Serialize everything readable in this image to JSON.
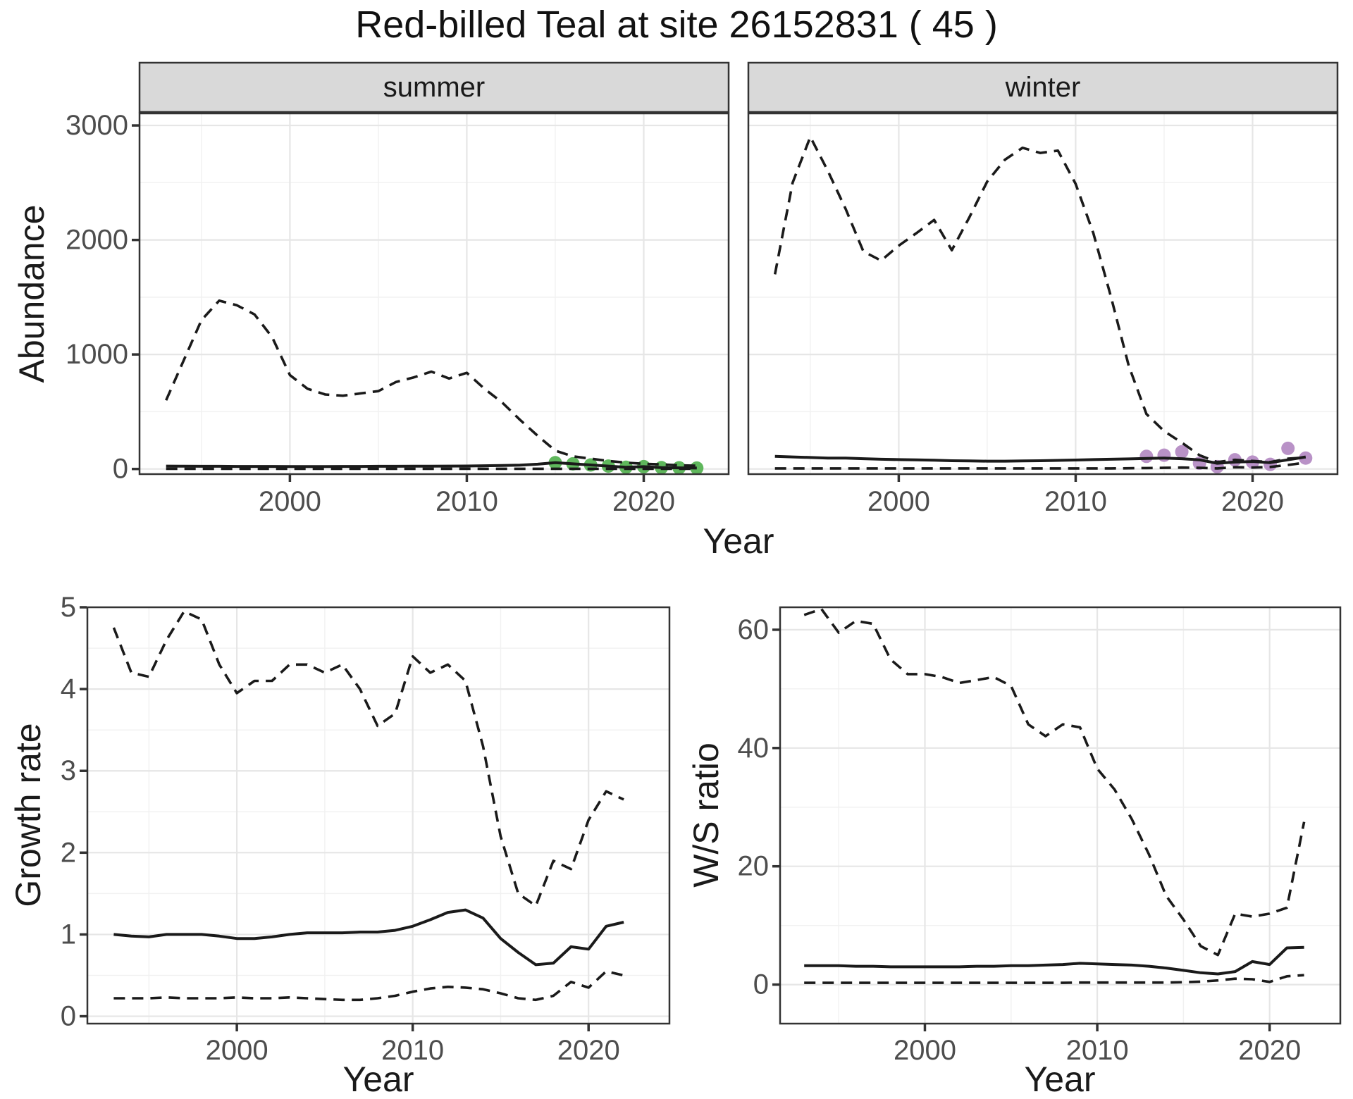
{
  "title": "Red-billed Teal at site 26152831 ( 45 )",
  "colors": {
    "line": "#1a1a1a",
    "dot_summer": "#5fb75c",
    "dot_winter": "#b992c7",
    "strip_bg": "#d9d9d9",
    "grid_major": "#e6e6e6",
    "grid_minor": "#f1f1f1",
    "axis_text": "#4d4d4d",
    "border": "#333333",
    "tick": "#333333"
  },
  "chart_data": [
    {
      "id": "abundance-summer",
      "type": "line",
      "facet": "summer",
      "ylabel": "Abundance",
      "xlabel": "Year",
      "xlim": [
        1991.5,
        2024.8
      ],
      "ylim": [
        -45,
        3105
      ],
      "xticks": [
        2000,
        2010,
        2020
      ],
      "xtick_labels": [
        "2000",
        "2010",
        "2020"
      ],
      "xminor": [
        1995,
        2005,
        2015
      ],
      "yticks": [
        0,
        1000,
        2000,
        3000
      ],
      "ytick_labels": [
        "0",
        "1000",
        "2000",
        "3000"
      ],
      "yminor": [
        500,
        1500,
        2500
      ],
      "x": [
        1993,
        1994,
        1995,
        1996,
        1997,
        1998,
        1999,
        2000,
        2001,
        2002,
        2003,
        2004,
        2005,
        2006,
        2007,
        2008,
        2009,
        2010,
        2011,
        2012,
        2013,
        2014,
        2015,
        2016,
        2017,
        2018,
        2019,
        2020,
        2021,
        2022,
        2023
      ],
      "series": [
        {
          "name": "upper_ci",
          "style": "dashed",
          "values": [
            600,
            950,
            1300,
            1470,
            1430,
            1350,
            1150,
            820,
            700,
            650,
            640,
            660,
            680,
            760,
            800,
            850,
            790,
            840,
            700,
            580,
            430,
            290,
            160,
            110,
            90,
            70,
            55,
            45,
            40,
            32,
            28
          ]
        },
        {
          "name": "lower_ci",
          "style": "dashed",
          "values": [
            2,
            2,
            2,
            2,
            2,
            2,
            2,
            2,
            2,
            2,
            2,
            2,
            2,
            2,
            2,
            2,
            2,
            2,
            2,
            2,
            2,
            2,
            2,
            2,
            2,
            2,
            2,
            2,
            2,
            2,
            2
          ]
        },
        {
          "name": "median",
          "style": "solid",
          "values": [
            25,
            24,
            23,
            23,
            22,
            22,
            22,
            21,
            21,
            21,
            22,
            22,
            23,
            23,
            24,
            24,
            25,
            26,
            28,
            30,
            33,
            42,
            55,
            45,
            35,
            25,
            15,
            20,
            12,
            10,
            8
          ]
        }
      ],
      "points": {
        "name": "observed-count",
        "color_key": "dot_summer",
        "x": [
          2015,
          2016,
          2017,
          2018,
          2019,
          2020,
          2021,
          2022,
          2023
        ],
        "y": [
          55,
          45,
          35,
          25,
          15,
          20,
          12,
          10,
          8
        ]
      }
    },
    {
      "id": "abundance-winter",
      "type": "line",
      "facet": "winter",
      "ylabel": "Abundance",
      "xlabel": "Year",
      "xlim": [
        1991.5,
        2024.8
      ],
      "ylim": [
        -45,
        3105
      ],
      "xticks": [
        2000,
        2010,
        2020
      ],
      "xtick_labels": [
        "2000",
        "2010",
        "2020"
      ],
      "xminor": [
        1995,
        2005,
        2015
      ],
      "yticks": [
        0,
        1000,
        2000,
        3000
      ],
      "ytick_labels": [
        "0",
        "1000",
        "2000",
        "3000"
      ],
      "yminor": [
        500,
        1500,
        2500
      ],
      "x": [
        1993,
        1994,
        1995,
        1996,
        1997,
        1998,
        1999,
        2000,
        2001,
        2002,
        2003,
        2004,
        2005,
        2006,
        2007,
        2008,
        2009,
        2010,
        2011,
        2012,
        2013,
        2014,
        2015,
        2016,
        2017,
        2018,
        2019,
        2020,
        2021,
        2022,
        2023
      ],
      "series": [
        {
          "name": "upper_ci",
          "style": "dashed",
          "values": [
            1700,
            2500,
            2900,
            2600,
            2270,
            1900,
            1820,
            1950,
            2060,
            2175,
            1910,
            2200,
            2510,
            2700,
            2805,
            2760,
            2780,
            2490,
            2060,
            1500,
            900,
            480,
            330,
            230,
            120,
            60,
            80,
            70,
            60,
            90,
            100
          ]
        },
        {
          "name": "lower_ci",
          "style": "dashed",
          "values": [
            5,
            5,
            5,
            5,
            5,
            5,
            5,
            5,
            5,
            5,
            5,
            5,
            5,
            5,
            5,
            5,
            5,
            5,
            5,
            5,
            6,
            8,
            10,
            12,
            10,
            5,
            15,
            12,
            18,
            35,
            55
          ]
        },
        {
          "name": "median",
          "style": "solid",
          "values": [
            110,
            105,
            100,
            95,
            95,
            90,
            85,
            82,
            80,
            76,
            72,
            70,
            68,
            68,
            70,
            72,
            75,
            78,
            82,
            85,
            88,
            92,
            95,
            90,
            80,
            50,
            60,
            65,
            55,
            80,
            105
          ]
        }
      ],
      "points": {
        "name": "observed-count",
        "color_key": "dot_winter",
        "x": [
          2014,
          2015,
          2016,
          2017,
          2018,
          2019,
          2020,
          2021,
          2022,
          2023
        ],
        "y": [
          110,
          120,
          150,
          50,
          20,
          80,
          60,
          40,
          180,
          95
        ]
      }
    },
    {
      "id": "growth-rate",
      "type": "line",
      "facet": null,
      "ylabel": "Growth rate",
      "xlabel": "Year",
      "xlim": [
        1991.5,
        2024.6
      ],
      "ylim": [
        -0.09,
        5.0
      ],
      "xticks": [
        2000,
        2010,
        2020
      ],
      "xtick_labels": [
        "2000",
        "2010",
        "2020"
      ],
      "xminor": [
        1995,
        2005,
        2015
      ],
      "yticks": [
        0,
        1,
        2,
        3,
        4,
        5
      ],
      "ytick_labels": [
        "0",
        "1",
        "2",
        "3",
        "4",
        "5"
      ],
      "yminor": [
        0.5,
        1.5,
        2.5,
        3.5,
        4.5
      ],
      "x": [
        1993,
        1994,
        1995,
        1996,
        1997,
        1998,
        1999,
        2000,
        2001,
        2002,
        2003,
        2004,
        2005,
        2006,
        2007,
        2008,
        2009,
        2010,
        2011,
        2012,
        2013,
        2014,
        2015,
        2016,
        2017,
        2018,
        2019,
        2020,
        2021,
        2022
      ],
      "series": [
        {
          "name": "upper_ci",
          "style": "dashed",
          "values": [
            4.75,
            4.2,
            4.15,
            4.6,
            4.95,
            4.85,
            4.3,
            3.95,
            4.1,
            4.1,
            4.3,
            4.3,
            4.2,
            4.3,
            4.0,
            3.55,
            3.7,
            4.4,
            4.2,
            4.3,
            4.1,
            3.3,
            2.2,
            1.5,
            1.35,
            1.9,
            1.8,
            2.4,
            2.75,
            2.65
          ]
        },
        {
          "name": "lower_ci",
          "style": "dashed",
          "values": [
            0.22,
            0.22,
            0.22,
            0.23,
            0.22,
            0.22,
            0.22,
            0.23,
            0.22,
            0.22,
            0.23,
            0.22,
            0.21,
            0.2,
            0.2,
            0.22,
            0.25,
            0.3,
            0.34,
            0.36,
            0.35,
            0.33,
            0.28,
            0.22,
            0.2,
            0.25,
            0.42,
            0.35,
            0.55,
            0.5
          ]
        },
        {
          "name": "median",
          "style": "solid",
          "values": [
            1.0,
            0.98,
            0.97,
            1.0,
            1.0,
            1.0,
            0.98,
            0.95,
            0.95,
            0.97,
            1.0,
            1.02,
            1.02,
            1.02,
            1.03,
            1.03,
            1.05,
            1.1,
            1.18,
            1.27,
            1.3,
            1.2,
            0.95,
            0.78,
            0.63,
            0.65,
            0.85,
            0.82,
            1.1,
            1.15
          ]
        }
      ],
      "points": null
    },
    {
      "id": "ws-ratio",
      "type": "line",
      "facet": null,
      "ylabel": "W/S ratio",
      "xlabel": "Year",
      "xlim": [
        1991.6,
        2024.1
      ],
      "ylim": [
        -6.6,
        63.8
      ],
      "xticks": [
        2000,
        2010,
        2020
      ],
      "xtick_labels": [
        "2000",
        "2010",
        "2020"
      ],
      "xminor": [
        1995,
        2005,
        2015
      ],
      "yticks": [
        0,
        20,
        40,
        60
      ],
      "ytick_labels": [
        "0",
        "20",
        "40",
        "60"
      ],
      "yminor": [
        10,
        30,
        50
      ],
      "x": [
        1993,
        1994,
        1995,
        1996,
        1997,
        1998,
        1999,
        2000,
        2001,
        2002,
        2003,
        2004,
        2005,
        2006,
        2007,
        2008,
        2009,
        2010,
        2011,
        2012,
        2013,
        2014,
        2015,
        2016,
        2017,
        2018,
        2019,
        2020,
        2021,
        2022
      ],
      "series": [
        {
          "name": "upper_ci",
          "style": "dashed",
          "values": [
            62.5,
            63.5,
            59.5,
            61.5,
            61,
            55,
            52.5,
            52.5,
            52,
            51,
            51.5,
            52,
            50.5,
            44,
            42,
            44,
            43.5,
            36.5,
            33,
            28,
            22,
            15,
            11,
            6.5,
            5,
            12,
            11.5,
            12,
            13,
            27.5
          ]
        },
        {
          "name": "lower_ci",
          "style": "dashed",
          "values": [
            0.3,
            0.3,
            0.3,
            0.3,
            0.3,
            0.3,
            0.3,
            0.3,
            0.3,
            0.3,
            0.3,
            0.3,
            0.3,
            0.3,
            0.3,
            0.3,
            0.35,
            0.35,
            0.35,
            0.35,
            0.35,
            0.35,
            0.4,
            0.5,
            0.7,
            1.0,
            0.9,
            0.45,
            1.4,
            1.6
          ]
        },
        {
          "name": "median",
          "style": "solid",
          "values": [
            3.2,
            3.2,
            3.2,
            3.1,
            3.1,
            3.0,
            3.0,
            3.0,
            3.0,
            3.0,
            3.1,
            3.1,
            3.2,
            3.2,
            3.3,
            3.4,
            3.6,
            3.5,
            3.4,
            3.3,
            3.1,
            2.8,
            2.4,
            2.0,
            1.8,
            2.2,
            3.9,
            3.4,
            6.2,
            6.3
          ]
        }
      ],
      "points": null
    }
  ]
}
